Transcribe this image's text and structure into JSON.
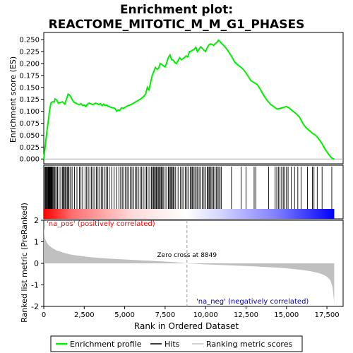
{
  "chart_data": {
    "type": "line",
    "title_line1": "Enrichment plot:",
    "title_line2": "REACTOME_MITOTIC_M_M_G1_PHASES",
    "top_panel": {
      "ylabel": "Enrichment score (ES)",
      "ylim": [
        -0.01,
        0.265
      ],
      "yticks": [
        "0.000",
        "0.025",
        "0.050",
        "0.075",
        "0.100",
        "0.125",
        "0.150",
        "0.175",
        "0.200",
        "0.225",
        "0.250"
      ],
      "ytick_values": [
        0,
        0.025,
        0.05,
        0.075,
        0.1,
        0.125,
        0.15,
        0.175,
        0.2,
        0.225,
        0.25
      ],
      "line_color": "#00ee00",
      "es_curve": {
        "x": [
          0,
          100,
          200,
          300,
          350,
          450,
          550,
          650,
          700,
          800,
          900,
          1000,
          1150,
          1300,
          1400,
          1500,
          1600,
          1700,
          1800,
          1900,
          2000,
          2100,
          2200,
          2300,
          2400,
          2500,
          2600,
          2700,
          2800,
          2900,
          3000,
          3100,
          3200,
          3300,
          3400,
          3500,
          3600,
          3700,
          3800,
          3900,
          4000,
          4200,
          4400,
          4500,
          4600,
          4700,
          4800,
          4900,
          5000,
          5200,
          5400,
          5600,
          5800,
          6000,
          6200,
          6300,
          6400,
          6500,
          6600,
          6700,
          6800,
          6900,
          7000,
          7100,
          7200,
          7300,
          7400,
          7500,
          7600,
          7700,
          7800,
          7900,
          8000,
          8100,
          8200,
          8300,
          8400,
          8500,
          8600,
          8700,
          8800,
          8900,
          9000,
          9100,
          9200,
          9300,
          9400,
          9500,
          9600,
          9700,
          9800,
          9900,
          10000,
          10100,
          10200,
          10300,
          10400,
          10500,
          10600,
          10700,
          10800,
          10900,
          11000,
          11200,
          11400,
          11600,
          11800,
          12000,
          12200,
          12400,
          12600,
          12800,
          13000,
          13200,
          13400,
          13600,
          13800,
          14000,
          14200,
          14400,
          14600,
          14800,
          15000,
          15200,
          15400,
          15600,
          15800,
          16000,
          16200,
          16400,
          16600,
          16800,
          17000,
          17200,
          17400,
          17600,
          17800,
          17950
        ],
        "y": [
          0.0,
          0.03,
          0.06,
          0.085,
          0.1,
          0.118,
          0.12,
          0.12,
          0.126,
          0.124,
          0.117,
          0.118,
          0.12,
          0.115,
          0.125,
          0.136,
          0.134,
          0.128,
          0.122,
          0.118,
          0.117,
          0.115,
          0.114,
          0.116,
          0.112,
          0.113,
          0.11,
          0.115,
          0.117,
          0.116,
          0.114,
          0.115,
          0.117,
          0.116,
          0.114,
          0.116,
          0.112,
          0.115,
          0.112,
          0.113,
          0.11,
          0.108,
          0.106,
          0.1,
          0.103,
          0.102,
          0.107,
          0.106,
          0.108,
          0.112,
          0.114,
          0.118,
          0.122,
          0.126,
          0.132,
          0.137,
          0.15,
          0.145,
          0.16,
          0.175,
          0.183,
          0.192,
          0.188,
          0.19,
          0.2,
          0.198,
          0.195,
          0.193,
          0.202,
          0.213,
          0.218,
          0.208,
          0.207,
          0.202,
          0.2,
          0.206,
          0.212,
          0.208,
          0.21,
          0.213,
          0.216,
          0.214,
          0.225,
          0.226,
          0.228,
          0.23,
          0.234,
          0.225,
          0.23,
          0.235,
          0.232,
          0.228,
          0.225,
          0.233,
          0.239,
          0.241,
          0.24,
          0.238,
          0.242,
          0.244,
          0.249,
          0.246,
          0.242,
          0.235,
          0.226,
          0.215,
          0.203,
          0.197,
          0.192,
          0.185,
          0.175,
          0.164,
          0.16,
          0.156,
          0.145,
          0.133,
          0.123,
          0.115,
          0.11,
          0.105,
          0.106,
          0.108,
          0.11,
          0.106,
          0.1,
          0.095,
          0.088,
          0.075,
          0.066,
          0.06,
          0.054,
          0.05,
          0.042,
          0.032,
          0.02,
          0.01,
          0.002,
          0.0
        ]
      }
    },
    "hits_panel": {
      "hit_positions": [
        70,
        110,
        150,
        190,
        230,
        270,
        300,
        330,
        360,
        390,
        420,
        450,
        480,
        510,
        540,
        600,
        650,
        700,
        780,
        850,
        950,
        1050,
        1150,
        1200,
        1260,
        1320,
        1380,
        1450,
        1500,
        1560,
        1650,
        1750,
        1900,
        2050,
        2200,
        2300,
        2400,
        2550,
        2650,
        2750,
        2850,
        2950,
        3050,
        3150,
        3250,
        3350,
        3450,
        3550,
        3650,
        3750,
        3850,
        3950,
        4050,
        4200,
        4350,
        4500,
        4650,
        4750,
        4850,
        4950,
        5050,
        5150,
        5250,
        5350,
        5450,
        5550,
        5650,
        5750,
        5850,
        5950,
        6050,
        6150,
        6250,
        6350,
        6450,
        6550,
        6650,
        6720,
        6780,
        6840,
        6900,
        6960,
        7020,
        7080,
        7140,
        7200,
        7260,
        7320,
        7380,
        7500,
        7600,
        7700,
        7760,
        7820,
        7880,
        7940,
        8000,
        8060,
        8150,
        8300,
        8450,
        8550,
        8650,
        8750,
        8850,
        8950,
        9050,
        9120,
        9180,
        9260,
        9340,
        9420,
        9500,
        9600,
        9700,
        9800,
        9900,
        10000,
        10100,
        10160,
        10220,
        10280,
        10340,
        10420,
        10500,
        10580,
        10660,
        10740,
        10820,
        10900,
        10980,
        11600,
        12200,
        12500,
        13000,
        13100,
        13900,
        14300,
        14400,
        14500,
        14600,
        14700,
        14800,
        14900,
        15000,
        15100,
        15300,
        15500,
        15700,
        15900,
        16300,
        16600,
        16700,
        16900,
        17200,
        17800
      ],
      "gradient_start_color": "#ff0000",
      "gradient_end_color": "#0000ff"
    },
    "bottom_panel": {
      "ylabel": "Ranked list metric (PreRanked)",
      "ylim": [
        -2,
        2
      ],
      "yticks": [
        "2",
        "1",
        "0",
        "-1",
        "-2"
      ],
      "ytick_values": [
        2,
        1,
        0,
        -1,
        -2
      ],
      "fill_color": "#c0c0c0",
      "metric_curve": {
        "x": [
          0,
          50,
          100,
          200,
          300,
          500,
          800,
          1200,
          1600,
          2000,
          2500,
          3000,
          3500,
          4000,
          4500,
          5000,
          5500,
          6000,
          6500,
          7000,
          7500,
          8000,
          8500,
          8849,
          9500,
          10000,
          11000,
          12000,
          13000,
          14000,
          15000,
          15500,
          16000,
          16500,
          17000,
          17300,
          17500,
          17700,
          17850,
          17950
        ],
        "y": [
          1.65,
          1.3,
          1.1,
          0.95,
          0.85,
          0.72,
          0.6,
          0.5,
          0.42,
          0.37,
          0.32,
          0.28,
          0.25,
          0.22,
          0.2,
          0.18,
          0.16,
          0.14,
          0.12,
          0.1,
          0.08,
          0.06,
          0.03,
          0.0,
          -0.03,
          -0.05,
          -0.08,
          -0.11,
          -0.14,
          -0.18,
          -0.23,
          -0.27,
          -0.31,
          -0.37,
          -0.45,
          -0.53,
          -0.62,
          -0.78,
          -1.1,
          -1.85
        ]
      },
      "zero_cross_value": 8849,
      "zero_cross_label": "Zero cross at 8849",
      "pos_label": "'na_pos' (positively correlated)",
      "neg_label": "'na_neg' (negatively correlated)",
      "pos_color": "#ff0000",
      "neg_color": "#0000cc"
    },
    "xaxis": {
      "xlabel": "Rank in Ordered Dataset",
      "xlim": [
        0,
        18500
      ],
      "xticks": [
        "0",
        "2,500",
        "5,000",
        "7,500",
        "10,000",
        "12,500",
        "15,000",
        "17,500"
      ],
      "xtick_values": [
        0,
        2500,
        5000,
        7500,
        10000,
        12500,
        15000,
        17500
      ]
    },
    "legend": {
      "placement": "bottom",
      "entries": [
        {
          "label": "Enrichment profile",
          "color": "#00ee00"
        },
        {
          "label": "Hits",
          "color": "#000000"
        },
        {
          "label": "Ranking metric scores",
          "color": "#c0c0c0"
        }
      ]
    }
  }
}
